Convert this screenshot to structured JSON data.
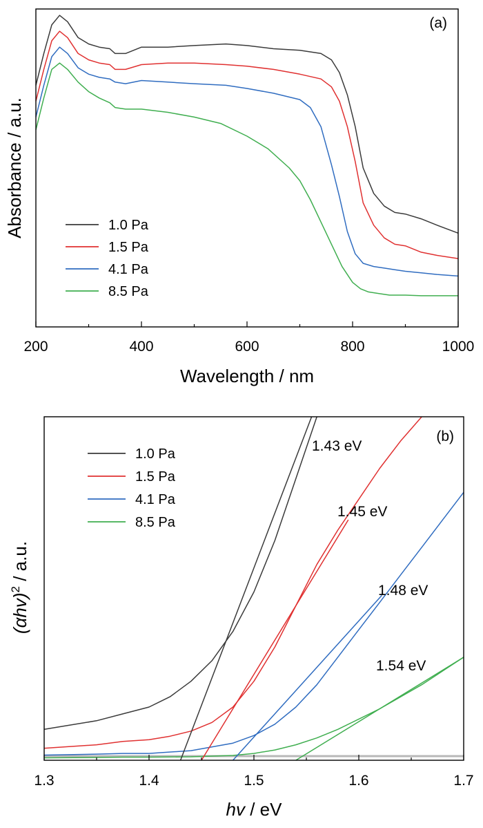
{
  "colors": {
    "s1": "#3a3a3a",
    "s2": "#e03030",
    "s3": "#2f6cc0",
    "s4": "#3fae4f",
    "baseline": "#b8b8b8"
  },
  "chart_data": [
    {
      "type": "line",
      "panel_label": "(a)",
      "xlabel": "Wavelength / nm",
      "ylabel": "Absorbance / a.u.",
      "xlim": [
        200,
        1000
      ],
      "ylim": [
        0,
        10
      ],
      "xticks": [
        "200",
        "400",
        "600",
        "800",
        "1000"
      ],
      "grid": false,
      "legend_position": "bottom-left",
      "series": [
        {
          "name": "1.0 Pa",
          "x": [
            200,
            215,
            230,
            245,
            260,
            280,
            300,
            320,
            340,
            350,
            370,
            400,
            450,
            500,
            560,
            600,
            650,
            700,
            740,
            760,
            775,
            790,
            805,
            820,
            840,
            860,
            880,
            900,
            930,
            960,
            1000
          ],
          "y": [
            7.6,
            8.6,
            9.5,
            9.8,
            9.6,
            9.1,
            8.9,
            8.8,
            8.75,
            8.6,
            8.6,
            8.8,
            8.8,
            8.85,
            8.9,
            8.85,
            8.75,
            8.7,
            8.6,
            8.4,
            8.0,
            7.3,
            6.3,
            5.0,
            4.2,
            3.8,
            3.6,
            3.55,
            3.4,
            3.2,
            2.95
          ]
        },
        {
          "name": "1.5 Pa",
          "x": [
            200,
            215,
            230,
            245,
            260,
            280,
            300,
            320,
            340,
            350,
            370,
            400,
            450,
            500,
            560,
            600,
            650,
            700,
            740,
            760,
            775,
            790,
            805,
            820,
            840,
            860,
            880,
            900,
            930,
            960,
            1000
          ],
          "y": [
            7.1,
            8.1,
            9.0,
            9.3,
            9.1,
            8.6,
            8.4,
            8.3,
            8.25,
            8.1,
            8.1,
            8.25,
            8.3,
            8.3,
            8.25,
            8.2,
            8.1,
            7.95,
            7.8,
            7.55,
            7.1,
            6.3,
            5.2,
            3.9,
            3.2,
            2.8,
            2.6,
            2.55,
            2.35,
            2.25,
            2.15
          ]
        },
        {
          "name": "4.1 Pa",
          "x": [
            200,
            215,
            230,
            245,
            260,
            280,
            300,
            320,
            340,
            350,
            370,
            400,
            450,
            500,
            560,
            600,
            650,
            700,
            720,
            740,
            760,
            775,
            790,
            805,
            820,
            840,
            860,
            880,
            900,
            930,
            960,
            1000
          ],
          "y": [
            6.6,
            7.6,
            8.5,
            8.8,
            8.6,
            8.15,
            7.95,
            7.85,
            7.8,
            7.7,
            7.65,
            7.75,
            7.7,
            7.65,
            7.6,
            7.5,
            7.35,
            7.15,
            6.9,
            6.3,
            5.1,
            4.1,
            3.0,
            2.3,
            2.0,
            1.9,
            1.85,
            1.8,
            1.75,
            1.7,
            1.65,
            1.6
          ]
        },
        {
          "name": "8.5 Pa",
          "x": [
            200,
            215,
            230,
            245,
            260,
            280,
            300,
            320,
            340,
            350,
            370,
            400,
            450,
            500,
            550,
            600,
            640,
            680,
            700,
            720,
            740,
            760,
            780,
            800,
            815,
            830,
            850,
            870,
            900,
            930,
            960,
            1000
          ],
          "y": [
            6.2,
            7.2,
            8.1,
            8.3,
            8.1,
            7.7,
            7.4,
            7.2,
            7.05,
            6.9,
            6.85,
            6.85,
            6.75,
            6.6,
            6.4,
            6.0,
            5.6,
            5.0,
            4.6,
            4.0,
            3.3,
            2.6,
            1.9,
            1.4,
            1.2,
            1.1,
            1.05,
            1.0,
            1.0,
            0.98,
            0.98,
            0.98
          ]
        }
      ]
    },
    {
      "type": "line",
      "panel_label": "(b)",
      "xlabel_main": "hv",
      "xlabel_unit": " / eV",
      "ylabel_main": "(αhv)",
      "ylabel_sup": "2",
      "ylabel_unit": " / a.u.",
      "xlim": [
        1.3,
        1.7
      ],
      "ylim": [
        0,
        10
      ],
      "xticks": [
        "1.3",
        "1.4",
        "1.5",
        "1.6",
        "1.7"
      ],
      "grid": false,
      "legend_position": "top-left",
      "series": [
        {
          "name": "1.0 Pa",
          "x": [
            1.3,
            1.32,
            1.35,
            1.375,
            1.4,
            1.42,
            1.44,
            1.46,
            1.48,
            1.5,
            1.52,
            1.54,
            1.56
          ],
          "y": [
            0.9,
            1.0,
            1.15,
            1.35,
            1.55,
            1.85,
            2.3,
            2.9,
            3.75,
            4.9,
            6.4,
            8.2,
            10.0
          ]
        },
        {
          "name": "1.5 Pa",
          "x": [
            1.3,
            1.35,
            1.375,
            1.4,
            1.42,
            1.44,
            1.46,
            1.48,
            1.5,
            1.52,
            1.54,
            1.56,
            1.58,
            1.6,
            1.62,
            1.64,
            1.66
          ],
          "y": [
            0.35,
            0.45,
            0.55,
            0.6,
            0.7,
            0.85,
            1.1,
            1.55,
            2.3,
            3.3,
            4.5,
            5.7,
            6.7,
            7.6,
            8.5,
            9.3,
            10.0
          ]
        },
        {
          "name": "4.1 Pa",
          "x": [
            1.3,
            1.35,
            1.375,
            1.4,
            1.44,
            1.48,
            1.5,
            1.52,
            1.54,
            1.56,
            1.58,
            1.6,
            1.62,
            1.64,
            1.66,
            1.68,
            1.7
          ],
          "y": [
            0.15,
            0.18,
            0.2,
            0.2,
            0.28,
            0.5,
            0.72,
            1.05,
            1.55,
            2.2,
            3.0,
            3.8,
            4.6,
            5.4,
            6.2,
            7.0,
            7.8
          ]
        },
        {
          "name": "8.5 Pa",
          "x": [
            1.3,
            1.35,
            1.375,
            1.4,
            1.44,
            1.48,
            1.5,
            1.52,
            1.54,
            1.56,
            1.58,
            1.6,
            1.62,
            1.64,
            1.66,
            1.68,
            1.7
          ],
          "y": [
            0.07,
            0.08,
            0.09,
            0.09,
            0.1,
            0.14,
            0.2,
            0.3,
            0.45,
            0.65,
            0.9,
            1.2,
            1.5,
            1.85,
            2.2,
            2.6,
            3.0
          ]
        }
      ],
      "tangent_lines": [
        {
          "series": "1.0 Pa",
          "label": "1.43 eV",
          "x": [
            1.43,
            1.555
          ],
          "y": [
            0,
            10.0
          ]
        },
        {
          "series": "1.5 Pa",
          "label": "1.45 eV",
          "x": [
            1.45,
            1.59
          ],
          "y": [
            0,
            7.0
          ]
        },
        {
          "series": "4.1 Pa",
          "label": "1.48 eV",
          "x": [
            1.48,
            1.622
          ],
          "y": [
            0,
            4.8
          ]
        },
        {
          "series": "8.5 Pa",
          "label": "1.54 eV",
          "x": [
            1.54,
            1.7
          ],
          "y": [
            0,
            3.0
          ]
        }
      ]
    }
  ]
}
